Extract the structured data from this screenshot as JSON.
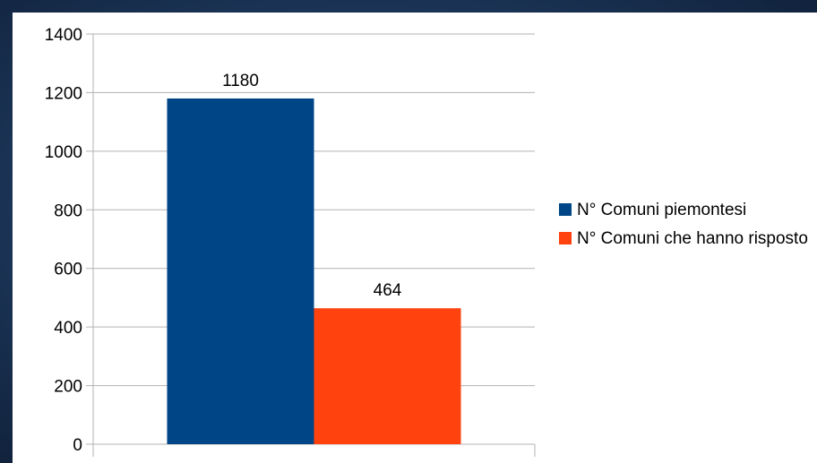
{
  "chart_data": {
    "type": "bar",
    "categories": [
      ""
    ],
    "series": [
      {
        "name": "N° Comuni piemontesi",
        "values": [
          1180
        ],
        "color": "#004586"
      },
      {
        "name": "N° Comuni che hanno risposto",
        "values": [
          464
        ],
        "color": "#ff420e"
      }
    ],
    "title": "",
    "xlabel": "",
    "ylabel": "",
    "ylim": [
      0,
      1400
    ],
    "yticks": [
      "0",
      "200",
      "400",
      "600",
      "800",
      "1000",
      "1200",
      "1400"
    ],
    "data_labels": [
      "1180",
      "464"
    ],
    "grid": true,
    "legend_position": "right"
  },
  "colors": {
    "background": "#1b3456",
    "panel": "#ffffff",
    "gridline": "#b3b3b3"
  }
}
